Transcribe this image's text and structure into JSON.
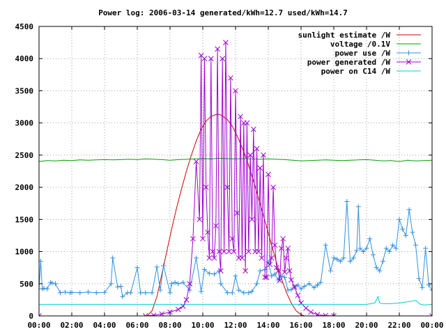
{
  "chart_data": {
    "type": "line",
    "title": "Power log: 2006-03-14 generated/kWh=12.7 used/kWh=14.7",
    "xlabel": "",
    "ylabel": "",
    "xlim": [
      0,
      24
    ],
    "ylim": [
      0,
      4500
    ],
    "x_ticks": [
      {
        "value": 0,
        "label": "00:00"
      },
      {
        "value": 2,
        "label": "02:00"
      },
      {
        "value": 4,
        "label": "04:00"
      },
      {
        "value": 6,
        "label": "06:00"
      },
      {
        "value": 8,
        "label": "08:00"
      },
      {
        "value": 10,
        "label": "10:00"
      },
      {
        "value": 12,
        "label": "12:00"
      },
      {
        "value": 14,
        "label": "14:00"
      },
      {
        "value": 16,
        "label": "16:00"
      },
      {
        "value": 18,
        "label": "18:00"
      },
      {
        "value": 20,
        "label": "20:00"
      },
      {
        "value": 22,
        "label": "22:00"
      },
      {
        "value": 24,
        "label": "00:00"
      }
    ],
    "y_ticks": [
      {
        "value": 0,
        "label": "0"
      },
      {
        "value": 500,
        "label": "500"
      },
      {
        "value": 1000,
        "label": "1000"
      },
      {
        "value": 1500,
        "label": "1500"
      },
      {
        "value": 2000,
        "label": "2000"
      },
      {
        "value": 2500,
        "label": "2500"
      },
      {
        "value": 3000,
        "label": "3000"
      },
      {
        "value": 3500,
        "label": "3500"
      },
      {
        "value": 4000,
        "label": "4000"
      },
      {
        "value": 4500,
        "label": "4500"
      }
    ],
    "grid": true,
    "legend_position": "top-right",
    "series": [
      {
        "name": "sunlight estimate /W",
        "color": "#cc0000",
        "marker": "none",
        "x": [
          0,
          6.6,
          6.9,
          7.2,
          7.5,
          7.8,
          8.1,
          8.4,
          8.7,
          9.0,
          9.3,
          9.6,
          9.9,
          10.2,
          10.5,
          10.8,
          11.0,
          11.2,
          11.5,
          11.8,
          12.1,
          12.4,
          12.7,
          13.0,
          13.3,
          13.6,
          13.9,
          14.2,
          14.5,
          14.8,
          15.1,
          15.4,
          15.7,
          16.0,
          16.2,
          24
        ],
        "y": [
          0,
          0,
          80,
          300,
          650,
          1000,
          1350,
          1680,
          1970,
          2250,
          2500,
          2720,
          2900,
          3030,
          3100,
          3130,
          3135,
          3110,
          3050,
          2950,
          2800,
          2620,
          2420,
          2180,
          1920,
          1650,
          1380,
          1100,
          830,
          580,
          370,
          200,
          80,
          20,
          0,
          0
        ]
      },
      {
        "name": "voltage /0.1V",
        "color": "#00a000",
        "marker": "none",
        "x": [
          0,
          0.5,
          1,
          1.5,
          2,
          2.5,
          3,
          3.5,
          4,
          4.5,
          5,
          5.5,
          6,
          6.5,
          7,
          7.5,
          8,
          8.5,
          9,
          9.5,
          10,
          10.5,
          11,
          11.5,
          12,
          12.5,
          13,
          13.5,
          14,
          14.5,
          15,
          15.5,
          16,
          16.5,
          17,
          17.5,
          18,
          18.5,
          19,
          19.5,
          20,
          20.5,
          21,
          21.5,
          22,
          22.5,
          23,
          23.5,
          24
        ],
        "y": [
          2400,
          2415,
          2410,
          2420,
          2415,
          2425,
          2420,
          2425,
          2430,
          2425,
          2430,
          2435,
          2430,
          2440,
          2435,
          2430,
          2420,
          2430,
          2435,
          2440,
          2445,
          2440,
          2450,
          2445,
          2440,
          2445,
          2440,
          2435,
          2440,
          2435,
          2430,
          2420,
          2410,
          2415,
          2420,
          2425,
          2420,
          2415,
          2420,
          2425,
          2430,
          2420,
          2410,
          2415,
          2400,
          2420,
          2410,
          2415,
          2420
        ]
      },
      {
        "name": "power use /W",
        "color": "#3090e0",
        "marker": "+",
        "x": [
          0,
          0.1,
          0.2,
          0.3,
          0.5,
          0.7,
          0.8,
          1.0,
          1.3,
          1.6,
          1.9,
          2.0,
          2.5,
          3.0,
          3.5,
          4.0,
          4.4,
          4.5,
          4.8,
          5.0,
          5.1,
          5.4,
          5.6,
          6.0,
          6.2,
          6.5,
          6.9,
          7.2,
          7.4,
          7.6,
          8.0,
          8.1,
          8.3,
          8.5,
          8.8,
          9.2,
          9.6,
          9.9,
          10.1,
          10.4,
          10.7,
          11.0,
          11.1,
          11.5,
          11.8,
          12.0,
          12.2,
          12.5,
          12.8,
          13.0,
          13.3,
          13.5,
          13.8,
          14.0,
          14.2,
          14.4,
          14.6,
          14.8,
          15.0,
          15.2,
          15.4,
          15.6,
          15.8,
          16.0,
          16.2,
          16.5,
          16.8,
          17.0,
          17.2,
          17.5,
          17.8,
          18.0,
          18.2,
          18.4,
          18.6,
          18.8,
          19.0,
          19.2,
          19.4,
          19.5,
          19.6,
          19.8,
          20.0,
          20.2,
          20.4,
          20.6,
          20.8,
          21.0,
          21.2,
          21.4,
          21.6,
          21.8,
          22.0,
          22.2,
          22.4,
          22.6,
          22.8,
          23.0,
          23.2,
          23.4,
          23.6,
          23.8,
          24.0
        ],
        "y": [
          420,
          850,
          420,
          430,
          420,
          520,
          510,
          500,
          360,
          370,
          360,
          365,
          360,
          370,
          360,
          365,
          500,
          900,
          450,
          460,
          300,
          360,
          360,
          750,
          360,
          360,
          360,
          760,
          400,
          780,
          360,
          500,
          520,
          500,
          520,
          400,
          900,
          380,
          720,
          660,
          650,
          700,
          500,
          360,
          360,
          620,
          400,
          360,
          360,
          380,
          500,
          700,
          720,
          840,
          620,
          650,
          560,
          620,
          600,
          400,
          410,
          450,
          480,
          420,
          460,
          500,
          440,
          480,
          520,
          1100,
          700,
          900,
          880,
          850,
          900,
          1780,
          850,
          900,
          1020,
          1700,
          1050,
          1000,
          1050,
          1200,
          950,
          750,
          700,
          850,
          1050,
          1000,
          1100,
          1050,
          1500,
          1350,
          1250,
          1650,
          1300,
          1100,
          580,
          440,
          1050,
          480,
          400
        ]
      },
      {
        "name": "power generated /W",
        "color": "#a000d0",
        "marker": "x",
        "x": [
          0,
          6.5,
          7.0,
          7.5,
          8.0,
          8.5,
          8.8,
          9.0,
          9.2,
          9.4,
          9.6,
          9.8,
          9.9,
          10.0,
          10.1,
          10.2,
          10.3,
          10.4,
          10.5,
          10.6,
          10.7,
          10.8,
          10.9,
          11.0,
          11.1,
          11.2,
          11.3,
          11.4,
          11.5,
          11.6,
          11.7,
          11.8,
          11.9,
          12.0,
          12.1,
          12.2,
          12.3,
          12.4,
          12.5,
          12.6,
          12.7,
          12.8,
          12.9,
          13.0,
          13.1,
          13.2,
          13.3,
          13.4,
          13.5,
          13.6,
          13.7,
          13.8,
          13.9,
          14.0,
          14.1,
          14.2,
          14.3,
          14.4,
          14.5,
          14.6,
          14.7,
          14.8,
          14.9,
          15.0,
          15.1,
          15.2,
          15.3,
          15.4,
          15.6,
          15.8,
          16.0,
          16.3,
          16.6,
          17.0,
          17.5,
          18.0,
          24.0
        ],
        "y": [
          0,
          0,
          10,
          30,
          60,
          100,
          150,
          250,
          500,
          1200,
          2400,
          1500,
          4050,
          1200,
          4000,
          2000,
          1300,
          900,
          4000,
          1000,
          900,
          1400,
          4150,
          1000,
          700,
          4000,
          1000,
          4250,
          2000,
          1000,
          3700,
          1200,
          1000,
          3500,
          1600,
          900,
          3100,
          900,
          3000,
          700,
          3000,
          1000,
          2500,
          1500,
          2900,
          1000,
          2600,
          1000,
          2300,
          900,
          2500,
          600,
          600,
          2200,
          800,
          900,
          2000,
          1100,
          750,
          700,
          550,
          1050,
          1200,
          680,
          900,
          1050,
          700,
          560,
          450,
          320,
          200,
          120,
          60,
          20,
          5,
          0,
          0
        ]
      },
      {
        "name": "power on C14 /W",
        "color": "#00d0d0",
        "marker": "none",
        "x": [
          0,
          2,
          4,
          6,
          8,
          10,
          12,
          14,
          16,
          18,
          19,
          20,
          20.5,
          20.7,
          20.8,
          21.0,
          21.5,
          22.0,
          22.5,
          23.0,
          23.3,
          23.5,
          24.0
        ],
        "y": [
          180,
          180,
          180,
          180,
          180,
          180,
          180,
          180,
          180,
          180,
          180,
          180,
          200,
          300,
          200,
          190,
          190,
          200,
          220,
          240,
          180,
          170,
          180
        ]
      }
    ]
  }
}
